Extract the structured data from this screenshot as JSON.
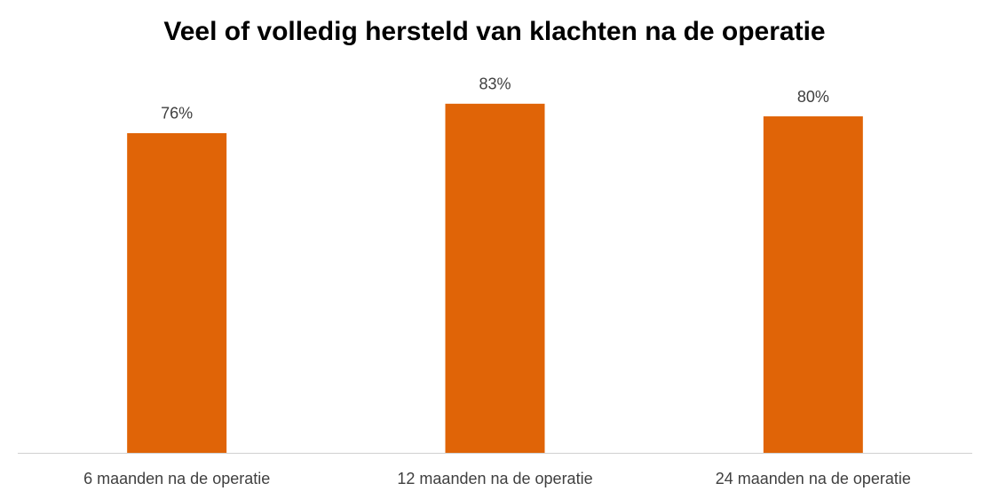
{
  "chart_data": {
    "type": "bar",
    "title": "Veel of volledig hersteld van klachten na de operatie",
    "categories": [
      "6 maanden na de operatie",
      "12 maanden na de operatie",
      "24 maanden na de operatie"
    ],
    "values": [
      76,
      83,
      80
    ],
    "value_labels": [
      "76%",
      "83%",
      "80%"
    ],
    "color": "#e06407"
  }
}
